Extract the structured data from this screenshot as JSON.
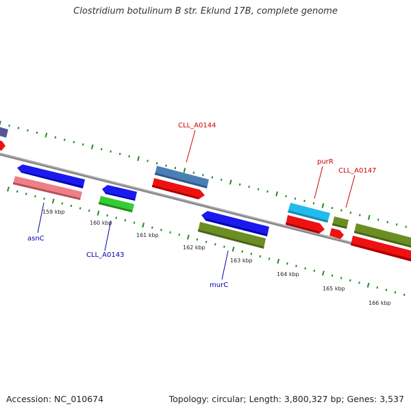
{
  "title": "Clostridium botulinum B str. Eklund 17B, complete genome",
  "footer": {
    "accession": "Accession: NC_010674",
    "summary": "Topology: circular; Length: 3,800,327 bp; Genes: 3,537"
  },
  "colors": {
    "backbone": "#888888",
    "ticks": "#1e8a1e",
    "forward_label": "#cc0000",
    "reverse_label": "#0000aa",
    "blue_gene": "#1a1aee",
    "red_gene": "#ee1111",
    "olive_gene": "#6b8e23",
    "steel_gene": "#4a7fb5",
    "pink_gene": "#ee7f86",
    "green_gene": "#33cc33",
    "cyan_gene": "#22bbee",
    "purple_gene": "#555599"
  },
  "scale": {
    "labels": [
      "159 kbp",
      "160 kbp",
      "161 kbp",
      "162 kbp",
      "163 kbp",
      "164 kbp",
      "165 kbp",
      "166 kbp"
    ]
  },
  "gene_labels": {
    "cll_a0144": "CLL_A0144",
    "purr": "purR",
    "cll_a0147": "CLL_A0147",
    "asnc": "asnC",
    "cll_a0143": "CLL_A0143",
    "murc": "murC"
  }
}
